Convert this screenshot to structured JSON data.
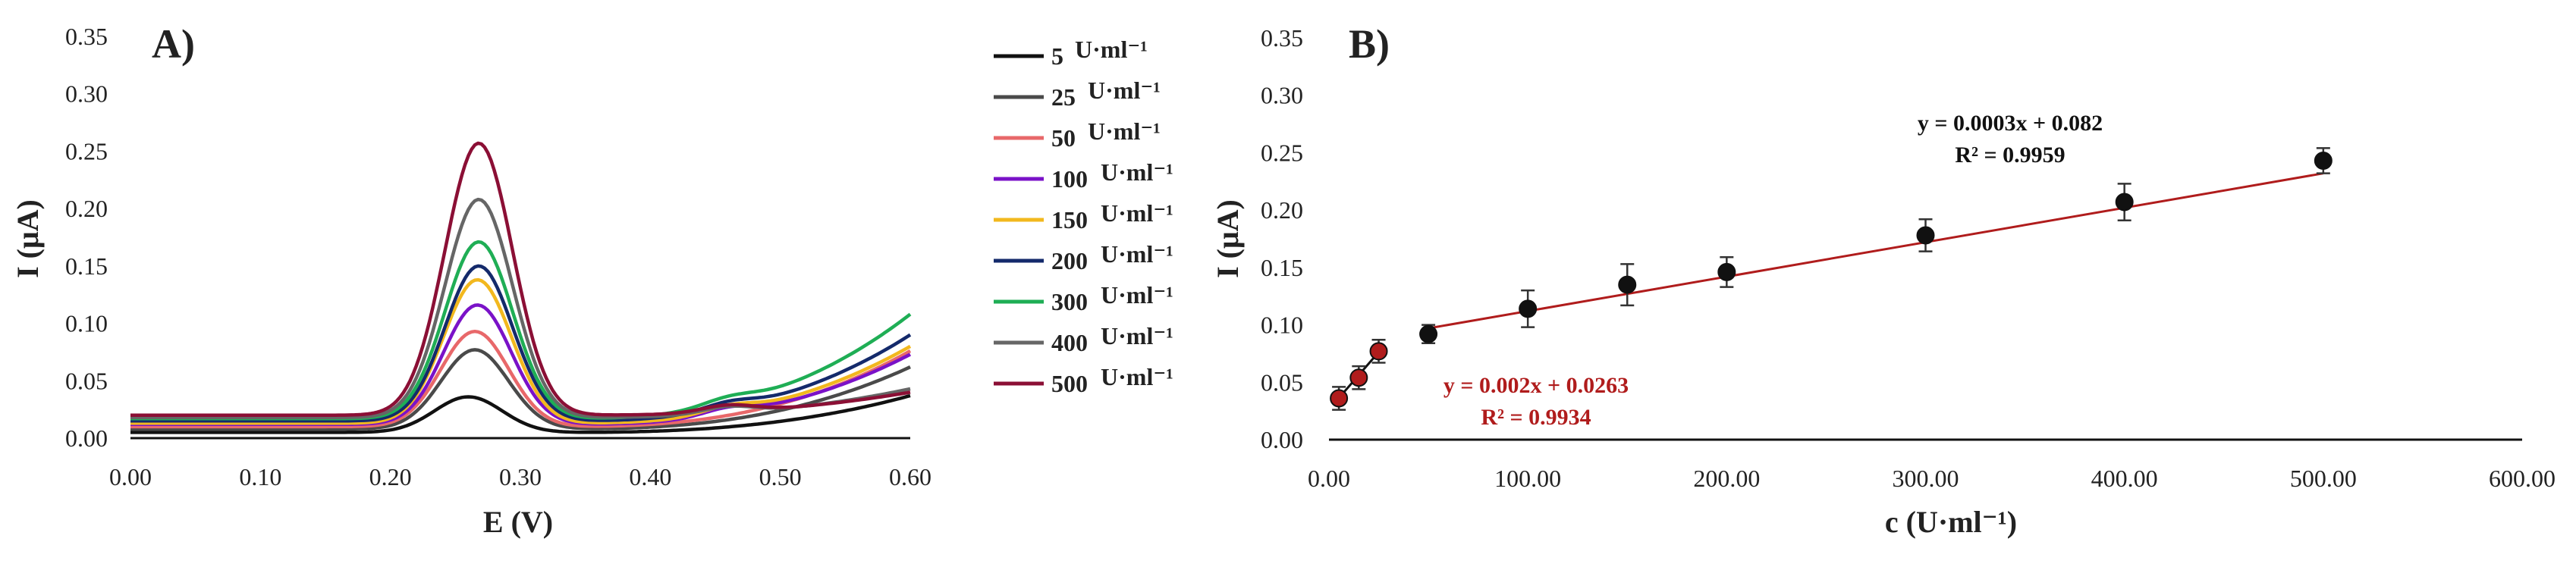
{
  "chart_data": [
    {
      "panel_label": "A)",
      "type": "line",
      "xlabel": "E (V)",
      "ylabel": "I (μA)",
      "xlim": [
        0,
        0.6
      ],
      "ylim": [
        0,
        0.35
      ],
      "xticks": [
        "0.00",
        "0.10",
        "0.20",
        "0.30",
        "0.40",
        "0.50",
        "0.60"
      ],
      "yticks": [
        "0.00",
        "0.05",
        "0.10",
        "0.15",
        "0.20",
        "0.25",
        "0.30",
        "0.35"
      ],
      "grid": false,
      "legend_position": "right",
      "series": [
        {
          "name": "5",
          "unit": "U·ml⁻¹",
          "color": "#111111",
          "baseline": 0.005,
          "peak_x": 0.26,
          "peak": 0.036,
          "end": 0.037
        },
        {
          "name": "25",
          "unit": "U·ml⁻¹",
          "color": "#4a4a4a",
          "baseline": 0.008,
          "peak_x": 0.265,
          "peak": 0.077,
          "end": 0.062
        },
        {
          "name": "50",
          "unit": "U·ml⁻¹",
          "color": "#e8686a",
          "baseline": 0.01,
          "peak_x": 0.265,
          "peak": 0.093,
          "end": 0.076
        },
        {
          "name": "100",
          "unit": "U·ml⁻¹",
          "color": "#7a12c8",
          "baseline": 0.012,
          "peak_x": 0.267,
          "peak": 0.116,
          "end": 0.073
        },
        {
          "name": "150",
          "unit": "U·ml⁻¹",
          "color": "#f2b81e",
          "baseline": 0.013,
          "peak_x": 0.267,
          "peak": 0.138,
          "end": 0.08
        },
        {
          "name": "200",
          "unit": "U·ml⁻¹",
          "color": "#142a6b",
          "baseline": 0.015,
          "peak_x": 0.268,
          "peak": 0.15,
          "end": 0.09
        },
        {
          "name": "300",
          "unit": "U·ml⁻¹",
          "color": "#1fae55",
          "baseline": 0.017,
          "peak_x": 0.268,
          "peak": 0.171,
          "end": 0.108
        },
        {
          "name": "400",
          "unit": "U·ml⁻¹",
          "color": "#666666",
          "baseline": 0.018,
          "peak_x": 0.268,
          "peak": 0.208,
          "end": 0.043
        },
        {
          "name": "500",
          "unit": "U·ml⁻¹",
          "color": "#8b0f35",
          "baseline": 0.02,
          "peak_x": 0.268,
          "peak": 0.257,
          "end": 0.04
        }
      ]
    },
    {
      "panel_label": "B)",
      "type": "scatter",
      "xlabel": "c (U·ml⁻¹)",
      "ylabel": "I (μA)",
      "xlim": [
        0,
        600
      ],
      "ylim": [
        0,
        0.35
      ],
      "xticks": [
        "0.00",
        "100.00",
        "200.00",
        "300.00",
        "400.00",
        "500.00",
        "600.00"
      ],
      "yticks": [
        "0.00",
        "0.05",
        "0.10",
        "0.15",
        "0.20",
        "0.25",
        "0.30",
        "0.35"
      ],
      "grid": false,
      "points": [
        {
          "x": 5,
          "y": 0.036,
          "err": 0.01,
          "color": "#b01c1c"
        },
        {
          "x": 15,
          "y": 0.054,
          "err": 0.01,
          "color": "#b01c1c"
        },
        {
          "x": 25,
          "y": 0.077,
          "err": 0.01,
          "color": "#b01c1c"
        },
        {
          "x": 50,
          "y": 0.092,
          "err": 0.008,
          "color": "#111111"
        },
        {
          "x": 100,
          "y": 0.114,
          "err": 0.016,
          "color": "#111111"
        },
        {
          "x": 150,
          "y": 0.135,
          "err": 0.018,
          "color": "#111111"
        },
        {
          "x": 200,
          "y": 0.146,
          "err": 0.013,
          "color": "#111111"
        },
        {
          "x": 300,
          "y": 0.178,
          "err": 0.014,
          "color": "#111111"
        },
        {
          "x": 400,
          "y": 0.207,
          "err": 0.016,
          "color": "#111111"
        },
        {
          "x": 500,
          "y": 0.243,
          "err": 0.011,
          "color": "#111111"
        }
      ],
      "fits": [
        {
          "slope": 0.0003,
          "intercept": 0.082,
          "x_range": [
            50,
            500
          ],
          "color": "#b01c1c",
          "equation": "y = 0.0003x + 0.082",
          "r2": "R² = 0.9959",
          "label_color": "#111111"
        },
        {
          "slope": 0.002,
          "intercept": 0.0263,
          "x_range": [
            5,
            25
          ],
          "color": "#111111",
          "equation": "y = 0.002x + 0.0263",
          "r2": "R² = 0.9934",
          "label_color": "#b01c1c"
        }
      ]
    }
  ]
}
